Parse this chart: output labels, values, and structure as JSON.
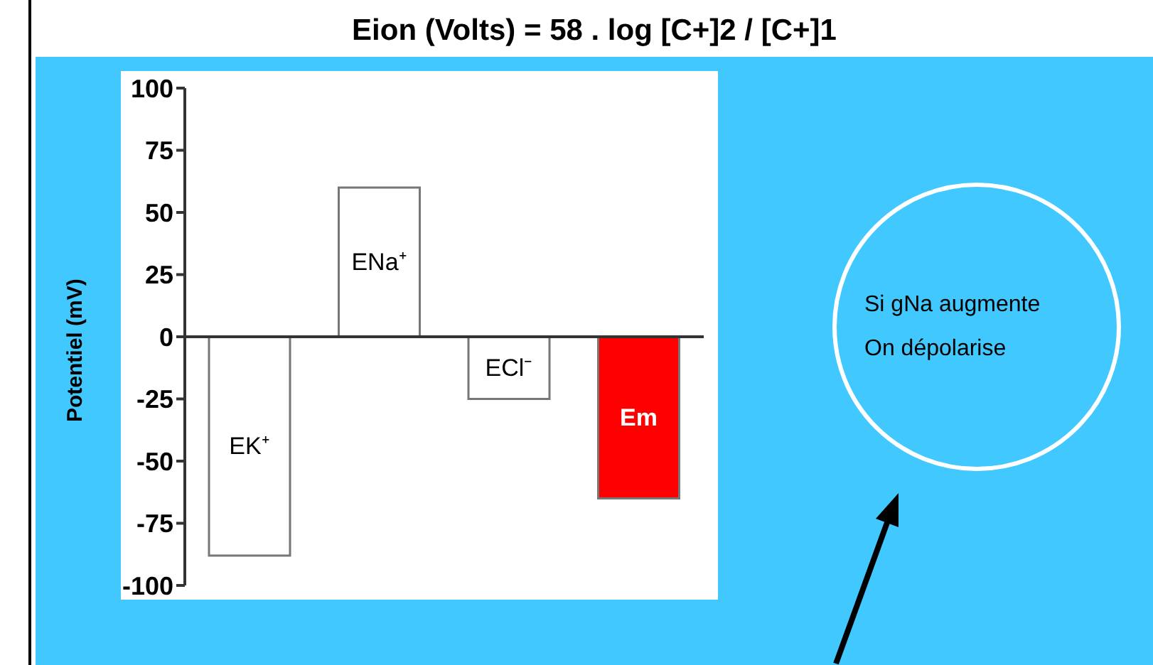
{
  "chart_data": {
    "type": "bar",
    "title": "Eion (Volts) = 58 . log [C+]2 / [C+]1",
    "ylabel": "Potentiel (mV)",
    "categories": [
      "EK⁺",
      "ENa⁺",
      "ECl⁻",
      "Em"
    ],
    "values": [
      -88,
      60,
      -25,
      -65
    ],
    "colors": [
      "#ffffff",
      "#ffffff",
      "#ffffff",
      "#ff0000"
    ],
    "ylim": [
      -100,
      100
    ],
    "yticks": [
      -100,
      -75,
      -50,
      -25,
      0,
      25,
      50,
      75,
      100
    ],
    "annotations": [
      "Si gNa augmente",
      "On dépolarise"
    ]
  }
}
